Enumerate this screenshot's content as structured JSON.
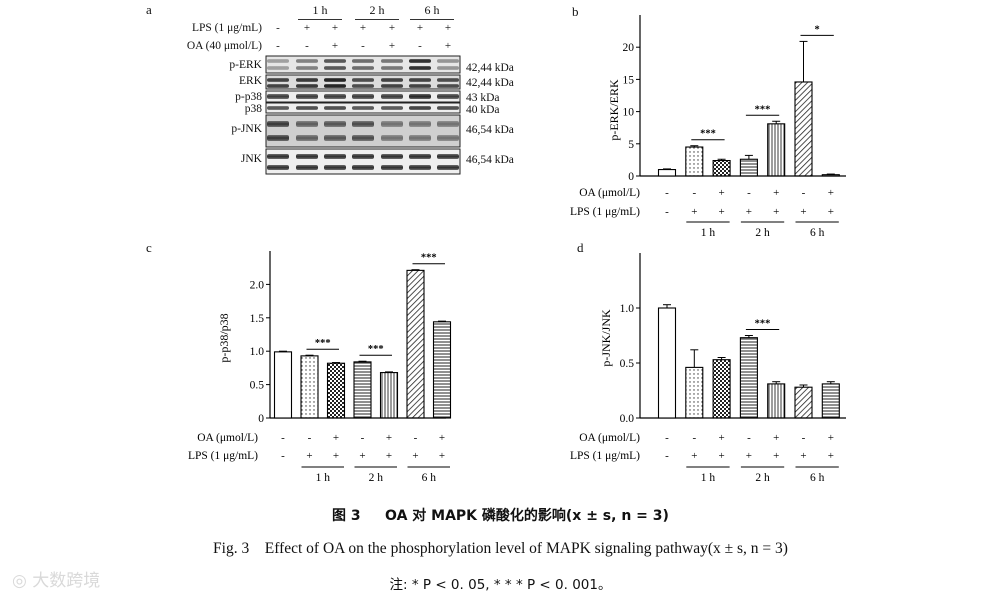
{
  "western_blot": {
    "panel_letter": "a",
    "treatment_rows": [
      {
        "label": "LPS (1 μg/mL)",
        "signs": [
          "-",
          "+",
          "+",
          "+",
          "+",
          "+",
          "+"
        ]
      },
      {
        "label": "OA (40 μmol/L)",
        "signs": [
          "-",
          "-",
          "+",
          "-",
          "+",
          "-",
          "+"
        ]
      }
    ],
    "time_groups": [
      "1 h",
      "2 h",
      "6 h"
    ],
    "blots": [
      {
        "label": "p-ERK",
        "kda": "42,44 kDa"
      },
      {
        "label": "ERK",
        "kda": "42,44 kDa"
      },
      {
        "label": "p-p38",
        "kda": "43 kDa"
      },
      {
        "label": "p38",
        "kda": "40 kDa"
      },
      {
        "label": "p-JNK",
        "kda": "46,54 kDa"
      },
      {
        "label": "JNK",
        "kda": "46,54 kDa"
      }
    ]
  },
  "chart_data": [
    {
      "type": "bar",
      "panel_letter": "b",
      "ylabel": "p-ERK/ERK",
      "ylim": [
        0,
        25
      ],
      "yticks": [
        "0",
        "5",
        "10",
        "15",
        "20"
      ],
      "values": [
        1.0,
        4.5,
        2.4,
        2.6,
        8.1,
        14.6,
        0.2
      ],
      "errors": [
        0.1,
        0.2,
        0.2,
        0.6,
        0.4,
        6.3,
        0.1
      ],
      "significance": [
        {
          "from": 1,
          "to": 2,
          "label": "***"
        },
        {
          "from": 3,
          "to": 4,
          "label": "***"
        },
        {
          "from": 5,
          "to": 6,
          "label": "*"
        }
      ],
      "oa_label": "OA (μmol/L)",
      "lps_label": "LPS (1 μg/mL)",
      "oa_signs": [
        "-",
        "-",
        "+",
        "-",
        "+",
        "-",
        "+"
      ],
      "lps_signs": [
        "-",
        "+",
        "+",
        "+",
        "+",
        "+",
        "+"
      ],
      "time_groups": [
        "1 h",
        "2 h",
        "6 h"
      ]
    },
    {
      "type": "bar",
      "panel_letter": "c",
      "ylabel": "p-p38/p38",
      "ylim": [
        0,
        2.5
      ],
      "yticks": [
        "0",
        "0.5",
        "1.0",
        "1.5",
        "2.0"
      ],
      "values": [
        0.99,
        0.93,
        0.82,
        0.84,
        0.68,
        2.21,
        1.44
      ],
      "errors": [
        0.01,
        0.01,
        0.01,
        0.01,
        0.01,
        0.01,
        0.01
      ],
      "significance": [
        {
          "from": 1,
          "to": 2,
          "label": "***"
        },
        {
          "from": 3,
          "to": 4,
          "label": "***"
        },
        {
          "from": 5,
          "to": 6,
          "label": "***"
        }
      ],
      "oa_label": "OA (μmol/L)",
      "lps_label": "LPS (1 μg/mL)",
      "oa_signs": [
        "-",
        "-",
        "+",
        "-",
        "+",
        "-",
        "+"
      ],
      "lps_signs": [
        "-",
        "+",
        "+",
        "+",
        "+",
        "+",
        "+"
      ],
      "time_groups": [
        "1 h",
        "2 h",
        "6 h"
      ]
    },
    {
      "type": "bar",
      "panel_letter": "d",
      "ylabel": "p-JNK/JNK",
      "ylim": [
        0,
        1.5
      ],
      "yticks": [
        "0.0",
        "0.5",
        "1.0"
      ],
      "values": [
        1.0,
        0.46,
        0.53,
        0.73,
        0.31,
        0.28,
        0.31
      ],
      "errors": [
        0.03,
        0.16,
        0.02,
        0.02,
        0.02,
        0.02,
        0.02
      ],
      "significance": [
        {
          "from": 3,
          "to": 4,
          "label": "***"
        }
      ],
      "oa_label": "OA (μmol/L)",
      "lps_label": "LPS (1 μg/mL)",
      "oa_signs": [
        "-",
        "-",
        "+",
        "-",
        "+",
        "-",
        "+"
      ],
      "lps_signs": [
        "-",
        "+",
        "+",
        "+",
        "+",
        "+",
        "+"
      ],
      "time_groups": [
        "1 h",
        "2 h",
        "6 h"
      ]
    }
  ],
  "caption": {
    "cn_label": "图 3",
    "cn_title": "OA 对 MAPK 磷酸化的影响(x ± s, n = 3)",
    "en_label": "Fig. 3",
    "en_title": "Effect of OA on the phosphorylation level of MAPK signaling pathway(x ± s, n = 3)",
    "note": "注: * P < 0. 05, * * * P < 0. 001。"
  },
  "watermark": "大数跨境"
}
